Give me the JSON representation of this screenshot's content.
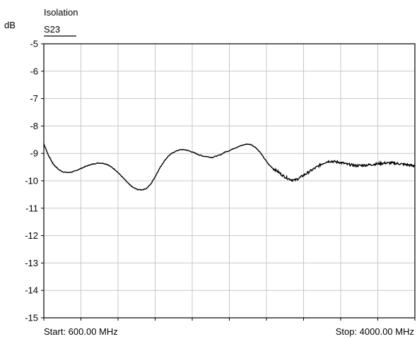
{
  "chart_data": {
    "type": "line",
    "title": "Isolation",
    "ylabel": "dB",
    "xlabel": "",
    "grid": true,
    "ylim": [
      -15,
      -5
    ],
    "xlim": [
      600,
      4000
    ],
    "y_ticks": [
      "-5",
      "-6",
      "-7",
      "-8",
      "-9",
      "-10",
      "-11",
      "-12",
      "-13",
      "-14",
      "-15"
    ],
    "x_divisions": 10,
    "start_label": "Start: 600.00 MHz",
    "stop_label": "Stop: 4000.00 MHz",
    "series": [
      {
        "name": "S23",
        "color": "#000000",
        "x": [
          600,
          620,
          640,
          660,
          680,
          700,
          740,
          780,
          820,
          860,
          900,
          940,
          980,
          1020,
          1060,
          1100,
          1140,
          1180,
          1220,
          1260,
          1300,
          1340,
          1380,
          1420,
          1460,
          1500,
          1540,
          1580,
          1620,
          1660,
          1700,
          1740,
          1780,
          1820,
          1860,
          1900,
          1940,
          1980,
          2020,
          2060,
          2100,
          2140,
          2180,
          2220,
          2260,
          2300,
          2340,
          2380,
          2420,
          2460,
          2500,
          2540,
          2580,
          2620,
          2660,
          2700,
          2740,
          2780,
          2820,
          2860,
          2900,
          2940,
          2980,
          3020,
          3060,
          3100,
          3140,
          3180,
          3220,
          3260,
          3300,
          3340,
          3380,
          3420,
          3460,
          3500,
          3540,
          3580,
          3620,
          3660,
          3700,
          3740,
          3780,
          3820,
          3860,
          3900,
          3940,
          3980,
          4000
        ],
        "y": [
          -8.65,
          -8.85,
          -9.05,
          -9.2,
          -9.35,
          -9.45,
          -9.6,
          -9.68,
          -9.7,
          -9.68,
          -9.62,
          -9.55,
          -9.48,
          -9.42,
          -9.38,
          -9.35,
          -9.36,
          -9.4,
          -9.5,
          -9.62,
          -9.78,
          -9.95,
          -10.12,
          -10.25,
          -10.32,
          -10.33,
          -10.28,
          -10.12,
          -9.85,
          -9.55,
          -9.3,
          -9.1,
          -8.98,
          -8.9,
          -8.86,
          -8.87,
          -8.92,
          -8.98,
          -9.05,
          -9.1,
          -9.12,
          -9.15,
          -9.1,
          -9.05,
          -8.95,
          -8.9,
          -8.82,
          -8.76,
          -8.7,
          -8.66,
          -8.68,
          -8.78,
          -8.95,
          -9.18,
          -9.4,
          -9.55,
          -9.65,
          -9.78,
          -9.88,
          -9.95,
          -9.98,
          -9.9,
          -9.8,
          -9.7,
          -9.6,
          -9.5,
          -9.4,
          -9.32,
          -9.28,
          -9.3,
          -9.32,
          -9.35,
          -9.4,
          -9.42,
          -9.45,
          -9.44,
          -9.43,
          -9.42,
          -9.4,
          -9.38,
          -9.36,
          -9.35,
          -9.35,
          -9.36,
          -9.38,
          -9.4,
          -9.42,
          -9.45,
          -9.45
        ]
      }
    ]
  }
}
